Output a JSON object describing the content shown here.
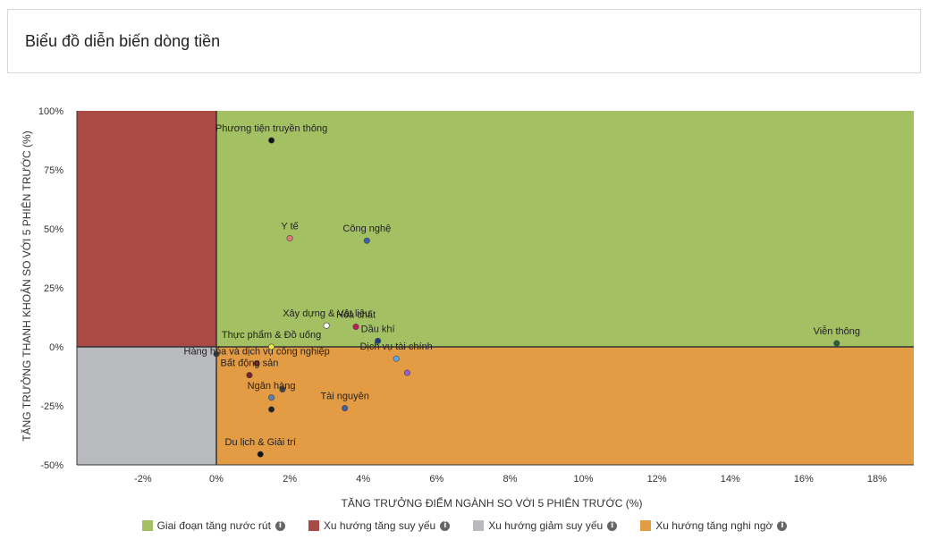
{
  "header": {
    "title": "Biểu đồ diễn biến dòng tiền"
  },
  "chart_data": {
    "type": "scatter",
    "xlabel": "TĂNG TRƯỞNG ĐIỂM NGÀNH SO VỚI 5 PHIÊN TRƯỚC (%)",
    "ylabel": "TĂNG TRƯỞNG THANH KHOẢN SO VỚI 5 PHIÊN TRƯỚC (%)",
    "xlim": [
      -3.8,
      19
    ],
    "ylim": [
      -50,
      100
    ],
    "x_ticks": [
      -2,
      0,
      2,
      4,
      6,
      8,
      10,
      12,
      14,
      16,
      18
    ],
    "x_tick_labels": [
      "-2%",
      "0%",
      "2%",
      "4%",
      "6%",
      "8%",
      "10%",
      "12%",
      "14%",
      "16%",
      "18%"
    ],
    "y_ticks": [
      -50,
      -25,
      0,
      25,
      50,
      75,
      100
    ],
    "y_tick_labels": [
      "-50%",
      "-25%",
      "0%",
      "25%",
      "50%",
      "75%",
      "100%"
    ],
    "quadrants": [
      {
        "name": "Giai đoạn tăng nước rút",
        "color": "#a3c163"
      },
      {
        "name": "Xu hướng tăng suy yếu",
        "color": "#aa4a44"
      },
      {
        "name": "Xu hướng giảm suy yếu",
        "color": "#b9babd"
      },
      {
        "name": "Xu hướng tăng nghi ngờ",
        "color": "#e39b44"
      }
    ],
    "points": [
      {
        "label": "Phương tiện truyền thông",
        "x": 1.5,
        "y": 87.5,
        "color": "#111111"
      },
      {
        "label": "Y tế",
        "x": 2.0,
        "y": 46,
        "color": "#e07b7b"
      },
      {
        "label": "Công nghệ",
        "x": 4.1,
        "y": 45,
        "color": "#3f5fa8"
      },
      {
        "label": "Xây dựng & Vật liệu",
        "x": 3.0,
        "y": 9,
        "color": "#ffffff"
      },
      {
        "label": "Hóa chất",
        "x": 3.8,
        "y": 8.5,
        "color": "#c2185b"
      },
      {
        "label": "Viễn thông",
        "x": 16.9,
        "y": 1.5,
        "color": "#2f5d3a"
      },
      {
        "label": "Dầu khí",
        "x": 4.4,
        "y": 2.5,
        "color": "#1c3f7a"
      },
      {
        "label": "Thực phẩm & Đồ uống",
        "x": 1.5,
        "y": 0,
        "color": "#f4e84a"
      },
      {
        "label": "Dịch vụ tài chính",
        "x": 4.9,
        "y": -5,
        "color": "#5aa8e6"
      },
      {
        "label": "Hàng hóa và dịch vụ công nghiệp",
        "x": 1.1,
        "y": -7,
        "color": "#7a2c2c"
      },
      {
        "label": "Bất động sản",
        "x": 0.9,
        "y": -12,
        "color": "#7a1f2b"
      },
      {
        "label": "",
        "x": 5.2,
        "y": -11,
        "color": "#9c5bd6"
      },
      {
        "label": "",
        "x": 0.0,
        "y": -3,
        "color": "#333333"
      },
      {
        "label": "",
        "x": 1.8,
        "y": -18,
        "color": "#444444"
      },
      {
        "label": "Ngân hàng",
        "x": 1.5,
        "y": -21.5,
        "color": "#5b7fb0"
      },
      {
        "label": "Tài nguyên",
        "x": 3.5,
        "y": -26,
        "color": "#3f5fa8"
      },
      {
        "label": "",
        "x": 1.5,
        "y": -26.5,
        "color": "#222222"
      },
      {
        "label": "Du lịch & Giải trí",
        "x": 1.2,
        "y": -45.5,
        "color": "#111111"
      }
    ]
  }
}
